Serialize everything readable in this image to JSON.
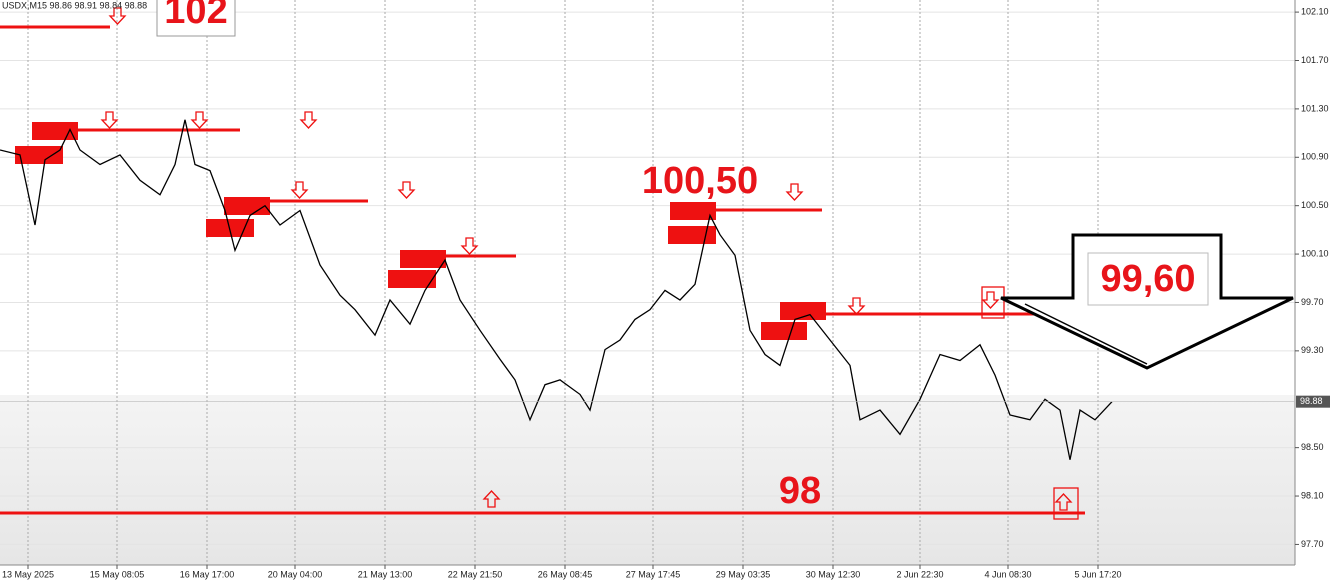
{
  "chart_data": {
    "type": "line",
    "header": "USDX,M15  98.86 98.91 98.84 98.88",
    "last_price": 98.88,
    "color": "#000000",
    "x": [
      0,
      20,
      35,
      45,
      60,
      70,
      80,
      100,
      120,
      140,
      160,
      175,
      185,
      195,
      210,
      225,
      235,
      250,
      265,
      280,
      300,
      320,
      340,
      355,
      375,
      390,
      410,
      425,
      445,
      460,
      480,
      500,
      515,
      530,
      545,
      560,
      580,
      590,
      605,
      620,
      635,
      650,
      665,
      680,
      695,
      710,
      720,
      735,
      750,
      765,
      780,
      795,
      810,
      830,
      850,
      860,
      880,
      900,
      920,
      940,
      960,
      980,
      995,
      1010,
      1030,
      1045,
      1060,
      1070,
      1080,
      1095,
      1112
    ],
    "values": [
      100.96,
      100.92,
      100.34,
      100.88,
      100.96,
      101.13,
      100.96,
      100.84,
      100.92,
      100.71,
      100.59,
      100.84,
      101.21,
      100.84,
      100.79,
      100.46,
      100.13,
      100.42,
      100.5,
      100.34,
      100.46,
      100.01,
      99.76,
      99.64,
      99.43,
      99.72,
      99.52,
      99.8,
      100.05,
      99.72,
      99.47,
      99.23,
      99.06,
      98.73,
      99.02,
      99.06,
      98.94,
      98.81,
      99.31,
      99.39,
      99.56,
      99.64,
      99.8,
      99.72,
      99.85,
      100.42,
      100.26,
      100.09,
      99.47,
      99.27,
      99.18,
      99.56,
      99.6,
      99.39,
      99.18,
      98.73,
      98.81,
      98.61,
      98.9,
      99.27,
      99.22,
      99.35,
      99.1,
      98.77,
      98.73,
      98.9,
      98.81,
      98.4,
      98.81,
      98.73,
      98.88
    ],
    "xlim": [
      0,
      1296
    ],
    "xticks": [
      {
        "value": 28,
        "label": "13 May 2025"
      },
      {
        "value": 117,
        "label": "15 May 08:05"
      },
      {
        "value": 207,
        "label": "16 May 17:00"
      },
      {
        "value": 295,
        "label": "20 May 04:00"
      },
      {
        "value": 385,
        "label": "21 May 13:00"
      },
      {
        "value": 475,
        "label": "22 May 21:50"
      },
      {
        "value": 565,
        "label": "26 May 08:45"
      },
      {
        "value": 653,
        "label": "27 May 17:45"
      },
      {
        "value": 743,
        "label": "29 May 03:35"
      },
      {
        "value": 833,
        "label": "30 May 12:30"
      },
      {
        "value": 920,
        "label": "2 Jun 22:30"
      },
      {
        "value": 1008,
        "label": "4 Jun 08:30"
      },
      {
        "value": 1098,
        "label": "5 Jun 17:20"
      }
    ],
    "ylim": [
      97.53,
      102.2
    ],
    "yticks": [
      {
        "value": 102.1,
        "label": "102.10"
      },
      {
        "value": 101.7,
        "label": "101.70"
      },
      {
        "value": 101.3,
        "label": "101.30"
      },
      {
        "value": 100.9,
        "label": "100.90"
      },
      {
        "value": 100.5,
        "label": "100.50"
      },
      {
        "value": 100.1,
        "label": "100.10"
      },
      {
        "value": 99.7,
        "label": "99.70"
      },
      {
        "value": 99.3,
        "label": "99.30"
      },
      {
        "value": 98.5,
        "label": "98.50"
      },
      {
        "value": 98.1,
        "label": "98.10"
      },
      {
        "value": 97.7,
        "label": "97.70"
      }
    ],
    "grid": true,
    "annotations": [
      "102",
      "100,50",
      "99,60",
      "98"
    ]
  }
}
